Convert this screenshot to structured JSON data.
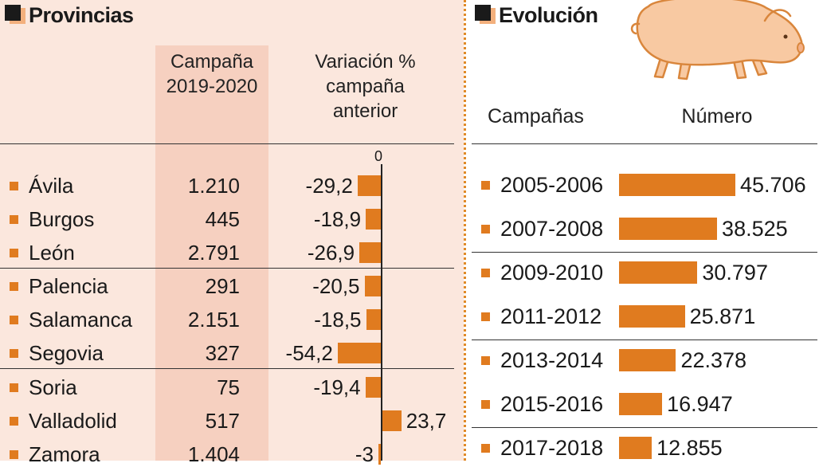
{
  "left": {
    "title": "Provincias",
    "col1_header": "Campaña 2019-2020",
    "col2_header": "Variación % campaña anterior",
    "zero_label": "0"
  },
  "right": {
    "title": "Evolución",
    "col1_header": "Campañas",
    "col2_header": "Número"
  },
  "chart_data": [
    {
      "type": "bar",
      "title": "Provincias",
      "categories": [
        "Ávila",
        "Burgos",
        "León",
        "Palencia",
        "Salamanca",
        "Segovia",
        "Soria",
        "Valladolid",
        "Zamora"
      ],
      "campana_2019_2020": [
        "1.210",
        "445",
        "2.791",
        "291",
        "2.151",
        "327",
        "75",
        "517",
        "1.404"
      ],
      "variacion_labels": [
        "-29,2",
        "-18,9",
        "-26,9",
        "-20,5",
        "-18,5",
        "-54,2",
        "-19,4",
        "23,7",
        "-3"
      ],
      "variacion_values": [
        -29.2,
        -18.9,
        -26.9,
        -20.5,
        -18.5,
        -54.2,
        -19.4,
        23.7,
        -3
      ],
      "xlim": [
        -60,
        30
      ]
    },
    {
      "type": "bar",
      "title": "Evolución",
      "categories": [
        "2005-2006",
        "2007-2008",
        "2009-2010",
        "2011-2012",
        "2013-2014",
        "2015-2016",
        "2017-2018"
      ],
      "labels": [
        "45.706",
        "38.525",
        "30.797",
        "25.871",
        "22.378",
        "16.947",
        "12.855"
      ],
      "values": [
        45706,
        38525,
        30797,
        25871,
        22378,
        16947,
        12855
      ],
      "xlim": [
        0,
        50000
      ]
    }
  ],
  "colors": {
    "bar": "#e07b1f",
    "panel": "#fbe7dd",
    "band": "#f6d0c0",
    "divider": "#e08a28"
  },
  "illustration": "pig-icon"
}
